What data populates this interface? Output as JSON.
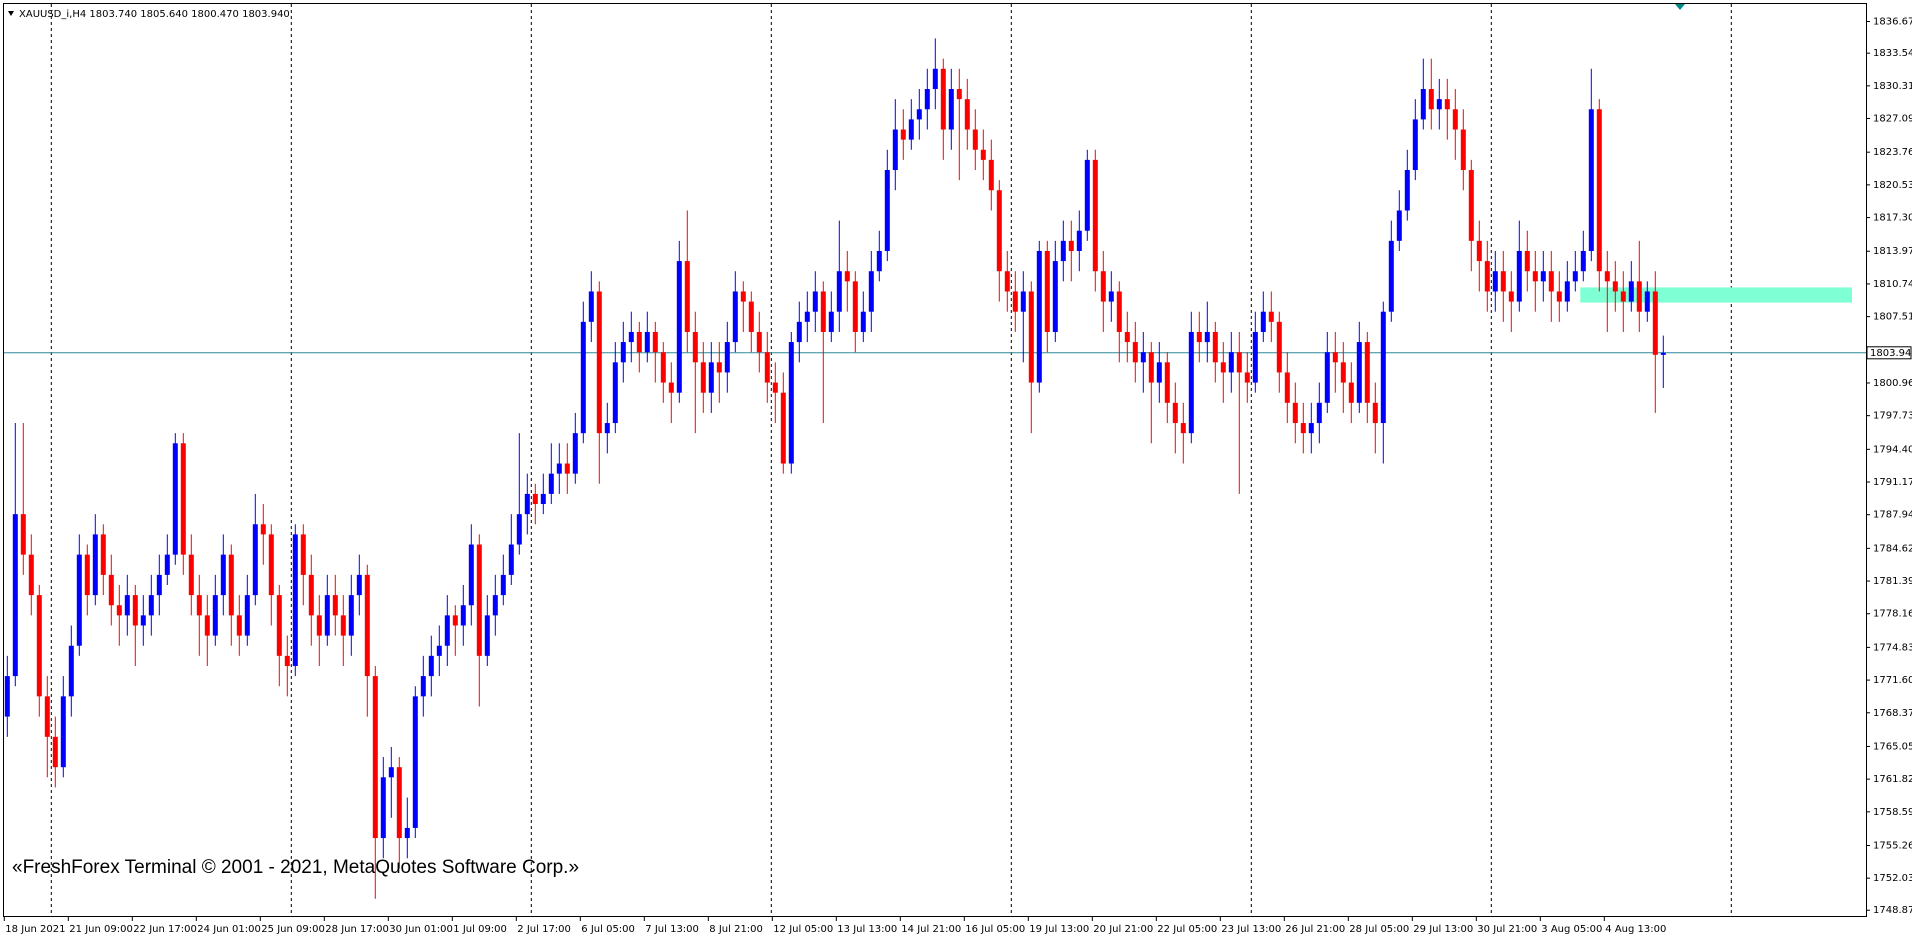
{
  "chart_data": {
    "type": "candlestick",
    "title": "XAUUSD_i,H4  1803.740 1805.640 1800.470 1803.940",
    "annotation": "«FreshForex Terminal © 2001 - 2021, MetaQuotes Software Corp.»",
    "up_color": "#0000ff",
    "down_color": "#ff0000",
    "ylim": [
      1748.2,
      1838.4
    ],
    "yticks": [
      {
        "value": 1836.67,
        "label": "1836.670"
      },
      1833.545,
      1830.315,
      {
        "value": 1827.09,
        "label": "1827.090"
      },
      {
        "value": 1823.76,
        "label": "1823.760"
      },
      {
        "value": 1820.53,
        "label": "1820.530"
      },
      {
        "value": 1817.3,
        "label": "1817.300"
      },
      1813.975,
      1810.745,
      1807.515,
      {
        "value": 1800.96,
        "label": "1800.960"
      },
      {
        "value": 1797.73,
        "label": "1797.730"
      },
      1794.405,
      1791.175,
      1787.945,
      {
        "value": 1784.62,
        "label": "1784.620"
      },
      {
        "value": 1781.39,
        "label": "1781.390"
      },
      {
        "value": 1778.16,
        "label": "1778.160"
      },
      1774.835,
      1771.605,
      1768.375,
      {
        "value": 1765.05,
        "label": "1765.050"
      },
      {
        "value": 1761.82,
        "label": "1761.820"
      },
      {
        "value": 1758.59,
        "label": "1758.590"
      },
      1755.265,
      1752.035,
      {
        "value": 1748.87,
        "label": "1748.870"
      }
    ],
    "current_price": {
      "value": 1803.94,
      "label": "1803.940",
      "color": "#2e8b9a"
    },
    "zone": {
      "low": 1808.9,
      "high": 1810.4,
      "color": "#7fffd4"
    },
    "categories": [
      "18 Jun 2021",
      null,
      null,
      null,
      null,
      null,
      null,
      null,
      "21 Jun 09:00",
      null,
      null,
      null,
      null,
      null,
      null,
      null,
      "22 Jun 17:00",
      null,
      null,
      null,
      null,
      null,
      null,
      null,
      "24 Jun 01:00",
      null,
      null,
      null,
      null,
      null,
      null,
      null,
      "25 Jun 09:00",
      null,
      null,
      null,
      null,
      null,
      null,
      null,
      "28 Jun 17:00",
      null,
      null,
      null,
      null,
      null,
      null,
      null,
      "30 Jun 01:00",
      null,
      null,
      null,
      null,
      null,
      null,
      null,
      "1 Jul 09:00",
      null,
      null,
      null,
      null,
      null,
      null,
      null,
      "2 Jul 17:00",
      null,
      null,
      null,
      null,
      null,
      null,
      null,
      "6 Jul 05:00",
      null,
      null,
      null,
      null,
      null,
      null,
      null,
      "7 Jul 13:00",
      null,
      null,
      null,
      null,
      null,
      null,
      null,
      "8 Jul 21:00",
      null,
      null,
      null,
      null,
      null,
      null,
      null,
      "12 Jul 05:00",
      null,
      null,
      null,
      null,
      null,
      null,
      null,
      "13 Jul 13:00",
      null,
      null,
      null,
      null,
      null,
      null,
      null,
      "14 Jul 21:00",
      null,
      null,
      null,
      null,
      null,
      null,
      null,
      "16 Jul 05:00",
      null,
      null,
      null,
      null,
      null,
      null,
      null,
      "19 Jul 13:00",
      null,
      null,
      null,
      null,
      null,
      null,
      null,
      "20 Jul 21:00",
      null,
      null,
      null,
      null,
      null,
      null,
      null,
      "22 Jul 05:00",
      null,
      null,
      null,
      null,
      null,
      null,
      null,
      "23 Jul 13:00",
      null,
      null,
      null,
      null,
      null,
      null,
      null,
      "26 Jul 21:00",
      null,
      null,
      null,
      null,
      null,
      null,
      null,
      "28 Jul 05:00",
      null,
      null,
      null,
      null,
      null,
      null,
      null,
      "29 Jul 13:00",
      null,
      null,
      null,
      null,
      null,
      null,
      null,
      "30 Jul 21:00",
      null,
      null,
      null,
      null,
      null,
      null,
      null,
      "3 Aug 05:00",
      null,
      null,
      null,
      null,
      null,
      null,
      null,
      "4 Aug 13:00",
      null,
      null,
      null,
      null,
      null,
      null,
      null
    ],
    "open": [
      1768,
      1772,
      1788,
      1784,
      1780,
      1770,
      1766,
      1763,
      1770,
      1775,
      1784,
      1780,
      1786,
      1782,
      1779,
      1778,
      1780,
      1777,
      1778,
      1780,
      1782,
      1784,
      1795,
      1784,
      1780,
      1778,
      1776,
      1780,
      1784,
      1778,
      1776,
      1780,
      1787,
      1786,
      1780,
      1774,
      1773,
      1786,
      1782,
      1778,
      1776,
      1780,
      1778,
      1776,
      1780,
      1782,
      1772,
      1756,
      1762,
      1763,
      1756,
      1757,
      1770,
      1772,
      1774,
      1775,
      1778,
      1777,
      1779,
      1785,
      1774,
      1778,
      1780,
      1782,
      1785,
      1788,
      1790,
      1789,
      1790,
      1792,
      1793,
      1792,
      1796,
      1807,
      1810,
      1796,
      1797,
      1803,
      1805,
      1806,
      1804,
      1806,
      1804,
      1801,
      1800,
      1813,
      1806,
      1803,
      1800,
      1803,
      1802,
      1805,
      1810,
      1809,
      1806,
      1804,
      1801,
      1800,
      1793,
      1805,
      1807,
      1808,
      1810,
      1806,
      1808,
      1812,
      1811,
      1806,
      1808,
      1812,
      1814,
      1822,
      1826,
      1825,
      1827,
      1828,
      1830,
      1832,
      1826,
      1830,
      1829,
      1826,
      1824,
      1823,
      1820,
      1812,
      1810,
      1808,
      1810,
      1801,
      1814,
      1806,
      1813,
      1815,
      1814,
      1816,
      1823,
      1812,
      1809,
      1810,
      1806,
      1805,
      1803,
      1804,
      1801,
      1803,
      1799,
      1797,
      1796,
      1806,
      1805,
      1806,
      1803,
      1802,
      1804,
      1802,
      1801,
      1806,
      1808,
      1807,
      1802,
      1799,
      1797,
      1796,
      1797,
      1799,
      1804,
      1803,
      1801,
      1799,
      1805,
      1799,
      1797,
      1808,
      1815,
      1818,
      1822,
      1827,
      1830,
      1828,
      1829,
      1828,
      1826,
      1822,
      1815,
      1813,
      1810,
      1812,
      1810,
      1809,
      1814,
      1812,
      1811,
      1812,
      1810,
      1809,
      1811,
      1812,
      1814,
      1828,
      1812,
      1811,
      1810,
      1809,
      1811,
      1808,
      1810,
      1803.74
    ],
    "high": [
      1774,
      1797,
      1797,
      1786,
      1781,
      1772,
      1768,
      1772,
      1777,
      1786,
      1785,
      1788,
      1787,
      1784,
      1781,
      1782,
      1781,
      1780,
      1782,
      1784,
      1786,
      1796,
      1796,
      1786,
      1782,
      1780,
      1782,
      1786,
      1785,
      1780,
      1782,
      1790,
      1789,
      1787,
      1781,
      1776,
      1787,
      1787,
      1784,
      1780,
      1782,
      1782,
      1780,
      1782,
      1784,
      1783,
      1773,
      1764,
      1765,
      1764,
      1760,
      1771,
      1774,
      1776,
      1777,
      1780,
      1779,
      1781,
      1787,
      1786,
      1780,
      1782,
      1784,
      1788,
      1796,
      1792,
      1791,
      1792,
      1795,
      1795,
      1795,
      1798,
      1809,
      1812,
      1811,
      1799,
      1805,
      1807,
      1808,
      1807,
      1808,
      1807,
      1805,
      1803,
      1815,
      1818,
      1808,
      1805,
      1805,
      1805,
      1807,
      1812,
      1811,
      1810,
      1808,
      1806,
      1803,
      1802,
      1806,
      1809,
      1810,
      1812,
      1811,
      1810,
      1817,
      1814,
      1812,
      1810,
      1814,
      1816,
      1824,
      1829,
      1828,
      1829,
      1830,
      1832,
      1835,
      1833,
      1832,
      1832,
      1831,
      1828,
      1826,
      1825,
      1821,
      1814,
      1812,
      1812,
      1811,
      1815,
      1815,
      1815,
      1817,
      1817,
      1818,
      1824,
      1824,
      1814,
      1812,
      1811,
      1808,
      1807,
      1806,
      1805,
      1805,
      1804,
      1801,
      1799,
      1808,
      1808,
      1809,
      1807,
      1805,
      1806,
      1806,
      1804,
      1808,
      1810,
      1810,
      1808,
      1804,
      1801,
      1799,
      1799,
      1801,
      1806,
      1806,
      1805,
      1803,
      1807,
      1806,
      1801,
      1809,
      1817,
      1820,
      1824,
      1829,
      1833,
      1833,
      1831,
      1831,
      1830,
      1828,
      1823,
      1817,
      1815,
      1814,
      1814,
      1812,
      1817,
      1816,
      1814,
      1814,
      1814,
      1812,
      1813,
      1814,
      1816,
      1832,
      1829,
      1814,
      1813,
      1812,
      1813,
      1815,
      1811,
      1812,
      1805.64
    ],
    "low": [
      1766,
      1771,
      1782,
      1778,
      1768,
      1762,
      1761,
      1762,
      1768,
      1774,
      1778,
      1779,
      1780,
      1777,
      1775,
      1776,
      1773,
      1775,
      1776,
      1778,
      1781,
      1783,
      1782,
      1778,
      1774,
      1773,
      1775,
      1778,
      1775,
      1774,
      1775,
      1779,
      1783,
      1777,
      1771,
      1770,
      1772,
      1779,
      1775,
      1773,
      1775,
      1776,
      1773,
      1774,
      1778,
      1768,
      1750,
      1754,
      1758,
      1753,
      1754,
      1756,
      1768,
      1770,
      1772,
      1773,
      1774,
      1775,
      1777,
      1769,
      1773,
      1776,
      1779,
      1781,
      1784,
      1786,
      1787,
      1788,
      1789,
      1790,
      1790,
      1791,
      1795,
      1805,
      1791,
      1794,
      1796,
      1801,
      1803,
      1802,
      1803,
      1801,
      1799,
      1797,
      1799,
      1804,
      1796,
      1798,
      1798,
      1799,
      1800,
      1804,
      1806,
      1804,
      1802,
      1799,
      1797,
      1792,
      1792,
      1803,
      1805,
      1806,
      1797,
      1805,
      1806,
      1808,
      1804,
      1805,
      1806,
      1811,
      1813,
      1820,
      1823,
      1824,
      1825,
      1826,
      1828,
      1823,
      1824,
      1821,
      1824,
      1822,
      1821,
      1818,
      1809,
      1808,
      1806,
      1803,
      1796,
      1800,
      1804,
      1805,
      1811,
      1811,
      1812,
      1815,
      1810,
      1806,
      1807,
      1803,
      1803,
      1801,
      1800,
      1795,
      1799,
      1797,
      1794,
      1793,
      1795,
      1803,
      1803,
      1801,
      1799,
      1800,
      1790,
      1799,
      1800,
      1805,
      1805,
      1800,
      1797,
      1795,
      1794,
      1794,
      1795,
      1798,
      1800,
      1798,
      1797,
      1798,
      1797,
      1794,
      1793,
      1807,
      1814,
      1817,
      1821,
      1826,
      1826,
      1826,
      1825,
      1823,
      1820,
      1812,
      1810,
      1808,
      1808,
      1807,
      1806,
      1808,
      1810,
      1808,
      1809,
      1807,
      1807,
      1808,
      1810,
      1811,
      1813,
      1810,
      1806,
      1808,
      1806,
      1808,
      1806,
      1807,
      1798,
      1800.47
    ],
    "close": [
      1772,
      1788,
      1784,
      1780,
      1770,
      1766,
      1763,
      1770,
      1775,
      1784,
      1780,
      1786,
      1782,
      1779,
      1778,
      1780,
      1777,
      1778,
      1780,
      1782,
      1784,
      1795,
      1784,
      1780,
      1778,
      1776,
      1780,
      1784,
      1778,
      1776,
      1780,
      1787,
      1786,
      1780,
      1774,
      1773,
      1786,
      1782,
      1778,
      1776,
      1780,
      1778,
      1776,
      1780,
      1782,
      1772,
      1756,
      1762,
      1763,
      1756,
      1757,
      1770,
      1772,
      1774,
      1775,
      1778,
      1777,
      1779,
      1785,
      1774,
      1778,
      1780,
      1782,
      1785,
      1788,
      1790,
      1789,
      1790,
      1792,
      1793,
      1792,
      1796,
      1807,
      1810,
      1796,
      1797,
      1803,
      1805,
      1806,
      1804,
      1806,
      1804,
      1801,
      1800,
      1813,
      1806,
      1803,
      1800,
      1803,
      1802,
      1805,
      1810,
      1809,
      1806,
      1804,
      1801,
      1800,
      1793,
      1805,
      1807,
      1808,
      1810,
      1806,
      1808,
      1812,
      1811,
      1806,
      1808,
      1812,
      1814,
      1822,
      1826,
      1825,
      1827,
      1828,
      1830,
      1832,
      1826,
      1830,
      1829,
      1826,
      1824,
      1823,
      1820,
      1812,
      1810,
      1808,
      1810,
      1801,
      1814,
      1806,
      1813,
      1815,
      1814,
      1816,
      1823,
      1812,
      1809,
      1810,
      1806,
      1805,
      1803,
      1804,
      1801,
      1803,
      1799,
      1797,
      1796,
      1806,
      1805,
      1806,
      1803,
      1802,
      1804,
      1802,
      1801,
      1806,
      1808,
      1807,
      1802,
      1799,
      1797,
      1796,
      1797,
      1799,
      1804,
      1803,
      1801,
      1799,
      1805,
      1799,
      1797,
      1808,
      1815,
      1818,
      1822,
      1827,
      1830,
      1828,
      1829,
      1828,
      1826,
      1822,
      1815,
      1813,
      1810,
      1812,
      1810,
      1809,
      1814,
      1812,
      1811,
      1812,
      1810,
      1809,
      1811,
      1812,
      1814,
      1828,
      1812,
      1811,
      1810,
      1809,
      1811,
      1808,
      1810,
      1803.74,
      1803.94
    ]
  }
}
